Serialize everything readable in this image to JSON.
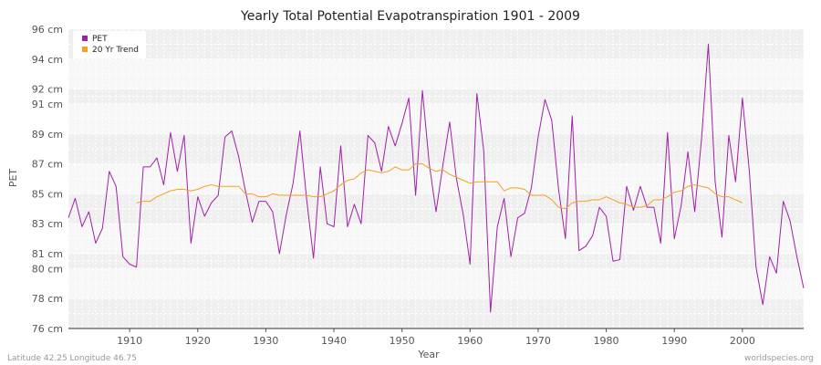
{
  "chart_data": {
    "type": "line",
    "title": "Yearly Total Potential Evapotranspiration 1901 - 2009",
    "xlabel": "Year",
    "ylabel": "PET",
    "xlim": [
      1901,
      2009
    ],
    "ylim": [
      76,
      96
    ],
    "x_ticks": [
      1910,
      1920,
      1930,
      1940,
      1950,
      1960,
      1970,
      1980,
      1990,
      2000
    ],
    "y_ticks": [
      76,
      78,
      80,
      81,
      83,
      85,
      87,
      89,
      91,
      92,
      94,
      96
    ],
    "y_tick_labels": [
      "76 cm",
      "78 cm",
      "80 cm",
      "81 cm",
      "83 cm",
      "85 cm",
      "87 cm",
      "89 cm",
      "91 cm",
      "92 cm",
      "94 cm",
      "96 cm"
    ],
    "grid": true,
    "legend_position": "top-left",
    "series": [
      {
        "name": "PET",
        "color": "#a020a8",
        "start_year": 1901,
        "values": [
          83.4,
          84.7,
          82.8,
          83.8,
          81.7,
          82.7,
          86.5,
          85.5,
          80.8,
          80.3,
          80.1,
          86.8,
          86.8,
          87.4,
          85.6,
          89.1,
          86.5,
          88.9,
          81.7,
          84.8,
          83.5,
          84.4,
          84.9,
          88.8,
          89.2,
          87.5,
          85.2,
          83.1,
          84.5,
          84.5,
          83.8,
          81.0,
          83.6,
          85.7,
          89.2,
          84.6,
          80.7,
          86.8,
          83.0,
          82.8,
          88.2,
          82.8,
          84.3,
          83.0,
          88.9,
          88.4,
          86.5,
          89.5,
          88.2,
          89.7,
          91.4,
          84.9,
          91.9,
          87.0,
          83.8,
          86.9,
          89.8,
          86.0,
          83.6,
          80.3,
          91.7,
          87.9,
          77.1,
          82.8,
          84.7,
          80.8,
          83.4,
          83.7,
          85.4,
          88.8,
          91.3,
          89.9,
          85.3,
          82.0,
          90.2,
          81.2,
          81.5,
          82.2,
          84.1,
          83.5,
          80.5,
          80.6,
          85.5,
          83.9,
          85.5,
          84.1,
          84.1,
          81.7,
          89.1,
          82.0,
          84.2,
          87.8,
          83.8,
          88.7,
          95.0,
          85.8,
          82.1,
          88.9,
          85.8,
          91.4,
          86.6,
          80.1,
          77.6,
          80.8,
          79.7,
          84.5,
          83.2,
          80.8,
          78.7
        ]
      },
      {
        "name": "20 Yr Trend",
        "color": "#f5a020",
        "start_year": 1911,
        "values": [
          84.4,
          84.5,
          84.5,
          84.8,
          85.0,
          85.2,
          85.3,
          85.3,
          85.2,
          85.3,
          85.5,
          85.6,
          85.5,
          85.5,
          85.5,
          85.5,
          85.0,
          85.0,
          84.8,
          84.8,
          85.0,
          84.9,
          84.9,
          84.9,
          84.9,
          84.9,
          84.8,
          84.8,
          85.0,
          85.2,
          85.6,
          85.9,
          86.0,
          86.4,
          86.6,
          86.5,
          86.4,
          86.5,
          86.8,
          86.6,
          86.6,
          87.0,
          87.0,
          86.7,
          86.5,
          86.6,
          86.3,
          86.1,
          85.9,
          85.7,
          85.8,
          85.8,
          85.8,
          85.8,
          85.2,
          85.4,
          85.4,
          85.3,
          84.9,
          84.9,
          84.9,
          84.6,
          84.1,
          84.0,
          84.4,
          84.5,
          84.5,
          84.6,
          84.6,
          84.8,
          84.6,
          84.4,
          84.3,
          84.1,
          84.1,
          84.2,
          84.6,
          84.6,
          84.8,
          85.1,
          85.2,
          85.5,
          85.6,
          85.5,
          85.4,
          85.0,
          84.8,
          84.8,
          84.6,
          84.4
        ]
      }
    ]
  },
  "footer": {
    "left": "Latitude 42.25 Longitude 46.75",
    "right": "worldspecies.org"
  }
}
